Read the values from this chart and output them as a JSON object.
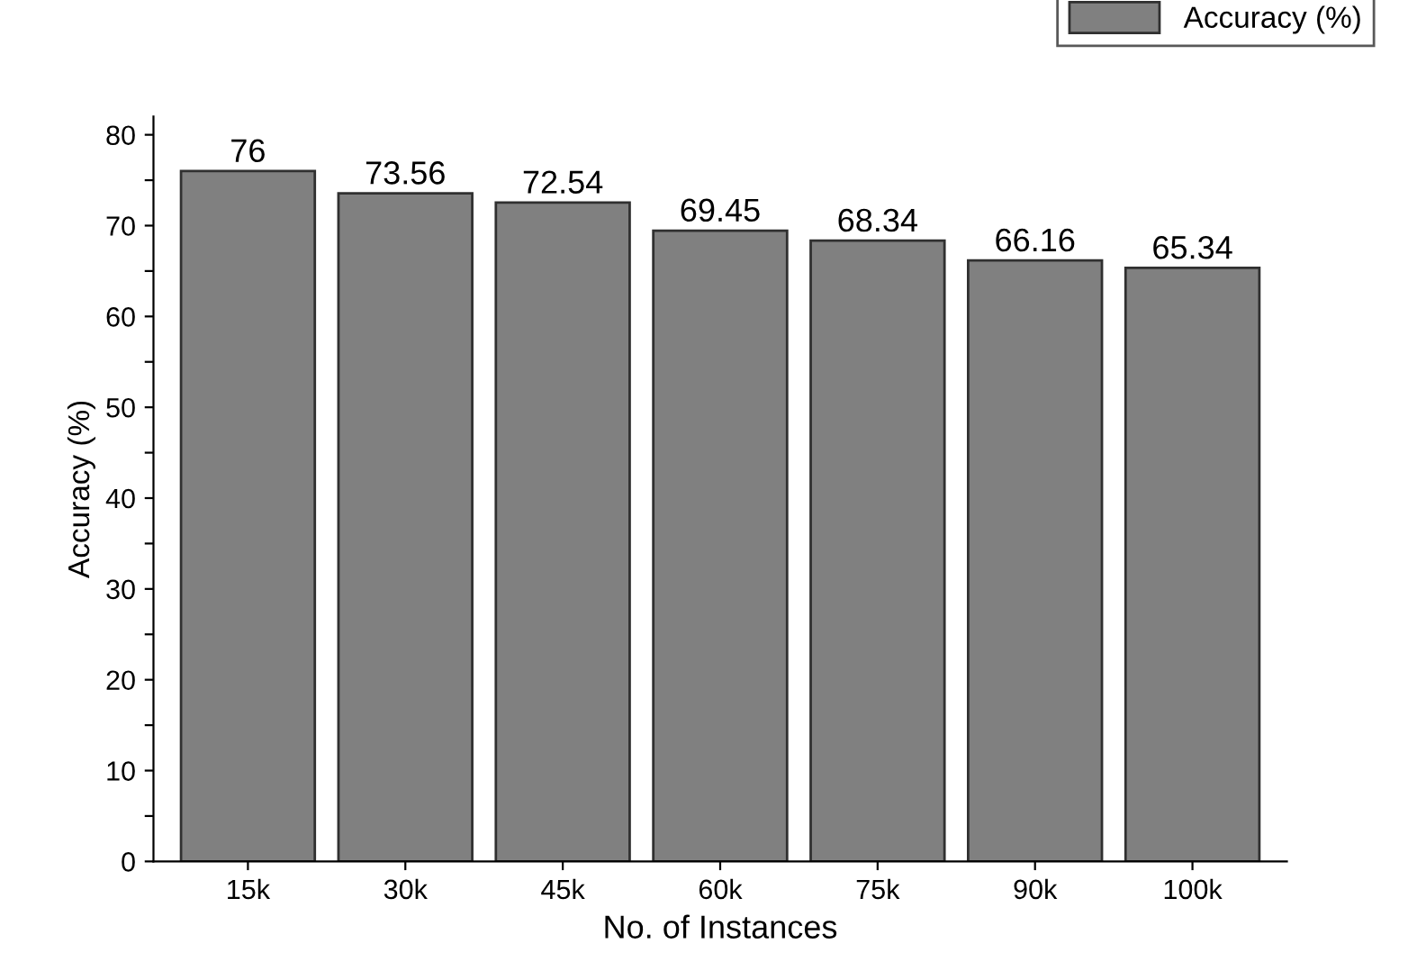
{
  "chart_data": {
    "type": "bar",
    "xlabel": "No. of Instances",
    "ylabel": "Accuracy (%)",
    "categories": [
      "15k",
      "30k",
      "45k",
      "60k",
      "75k",
      "90k",
      "100k"
    ],
    "series": [
      {
        "name": "Accuracy (%)",
        "color": "#808080",
        "values": [
          76,
          73.56,
          72.54,
          69.45,
          68.34,
          66.16,
          65.34
        ]
      }
    ],
    "ylim": [
      0,
      82
    ],
    "yticks": [
      0,
      {
        "value": 5,
        "label": null
      },
      10,
      {
        "value": 15,
        "label": null
      },
      20,
      {
        "value": 25,
        "label": null
      },
      30,
      {
        "value": 35,
        "label": null
      },
      40,
      {
        "value": 45,
        "label": null
      },
      50,
      {
        "value": 55,
        "label": null
      },
      60,
      {
        "value": 65,
        "label": null
      },
      70,
      {
        "value": 75,
        "label": null
      },
      80
    ],
    "data_labels": true,
    "legend": "top right",
    "grid": false
  }
}
